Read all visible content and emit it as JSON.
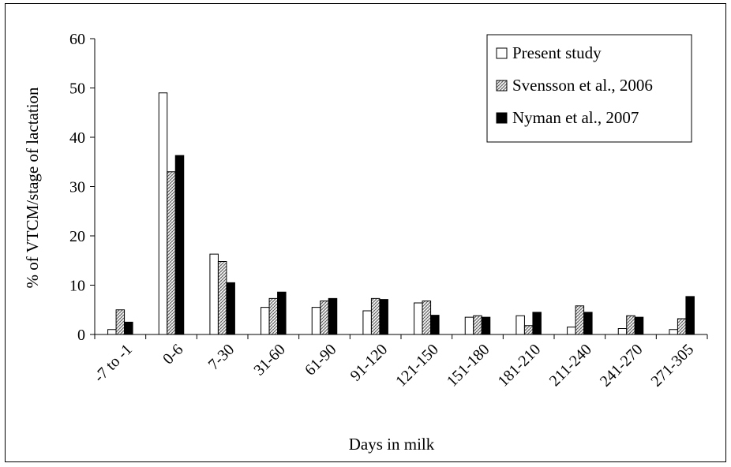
{
  "chart_data": {
    "type": "bar",
    "xlabel": "Days in milk",
    "ylabel": "% of VTCM/stage of lactation",
    "ylim": [
      0,
      60
    ],
    "yticks": [
      0,
      10,
      20,
      30,
      40,
      50,
      60
    ],
    "grid": false,
    "legend_position": "top-right",
    "categories": [
      "-7 to -1",
      "0-6",
      "7-30",
      "31-60",
      "61-90",
      "91-120",
      "121-150",
      "151-180",
      "181-210",
      "211-240",
      "241-270",
      "271-305"
    ],
    "series": [
      {
        "name": "Present study",
        "color": "#ffffff",
        "pattern": "none",
        "values": [
          1,
          49,
          16.3,
          5.5,
          5.5,
          4.8,
          6.4,
          3.5,
          3.8,
          1.5,
          1.2,
          1
        ]
      },
      {
        "name": "Svensson et al., 2006",
        "color": "#b0b0b0",
        "pattern": "crosshatch",
        "values": [
          5,
          33,
          14.8,
          7.3,
          6.8,
          7.3,
          6.8,
          3.8,
          1.8,
          5.8,
          3.8,
          3.2
        ]
      },
      {
        "name": "Nyman et al., 2007",
        "color": "#000000",
        "pattern": "none",
        "values": [
          2.5,
          36.3,
          10.5,
          8.6,
          7.3,
          7.1,
          3.9,
          3.5,
          4.5,
          4.5,
          3.5,
          7.7
        ]
      }
    ]
  }
}
